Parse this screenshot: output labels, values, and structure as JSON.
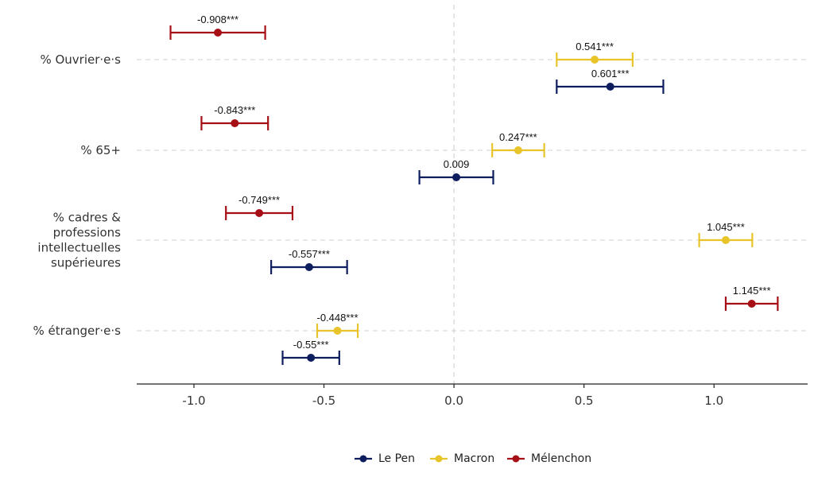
{
  "chart_data": {
    "type": "errorbar",
    "categories": [
      [
        "% Ouvrier·e·s"
      ],
      [
        "% 65+"
      ],
      [
        "% cadres &",
        "professions",
        "intellectuelles",
        "supérieures"
      ],
      [
        "% étranger·e·s"
      ]
    ],
    "xlim": [
      -1.22,
      1.36
    ],
    "xticks": [
      -1.0,
      -0.5,
      0.0,
      0.5,
      1.0
    ],
    "xtick_labels": [
      "-1.0",
      "-0.5",
      "0.0",
      "0.5",
      "1.0"
    ],
    "grid": "horizontal dashed at categories, vertical dashed at zero",
    "legend_position": "bottom",
    "series": [
      {
        "name": "Le Pen",
        "color": "#0d1d5e",
        "points": [
          {
            "category": 0,
            "estimate": 0.601,
            "low": 0.395,
            "high": 0.805,
            "label": "0.601***"
          },
          {
            "category": 1,
            "estimate": 0.009,
            "low": -0.133,
            "high": 0.151,
            "label": "0.009"
          },
          {
            "category": 2,
            "estimate": -0.557,
            "low": -0.703,
            "high": -0.411,
            "label": "-0.557***"
          },
          {
            "category": 3,
            "estimate": -0.55,
            "low": -0.659,
            "high": -0.441,
            "label": "-0.55***"
          }
        ]
      },
      {
        "name": "Macron",
        "color": "#e8c42a",
        "points": [
          {
            "category": 0,
            "estimate": 0.541,
            "low": 0.395,
            "high": 0.687,
            "label": "0.541***"
          },
          {
            "category": 1,
            "estimate": 0.247,
            "low": 0.147,
            "high": 0.347,
            "label": "0.247***"
          },
          {
            "category": 2,
            "estimate": 1.045,
            "low": 0.943,
            "high": 1.147,
            "label": "1.045***"
          },
          {
            "category": 3,
            "estimate": -0.448,
            "low": -0.526,
            "high": -0.37,
            "label": "-0.448***"
          }
        ]
      },
      {
        "name": "Mélenchon",
        "color": "#a50f15",
        "points": [
          {
            "category": 0,
            "estimate": -0.908,
            "low": -1.09,
            "high": -0.726,
            "label": "-0.908***"
          },
          {
            "category": 1,
            "estimate": -0.843,
            "low": -0.971,
            "high": -0.715,
            "label": "-0.843***"
          },
          {
            "category": 2,
            "estimate": -0.749,
            "low": -0.877,
            "high": -0.621,
            "label": "-0.749***"
          },
          {
            "category": 3,
            "estimate": 1.145,
            "low": 1.045,
            "high": 1.245,
            "label": "1.145***"
          }
        ]
      }
    ]
  }
}
